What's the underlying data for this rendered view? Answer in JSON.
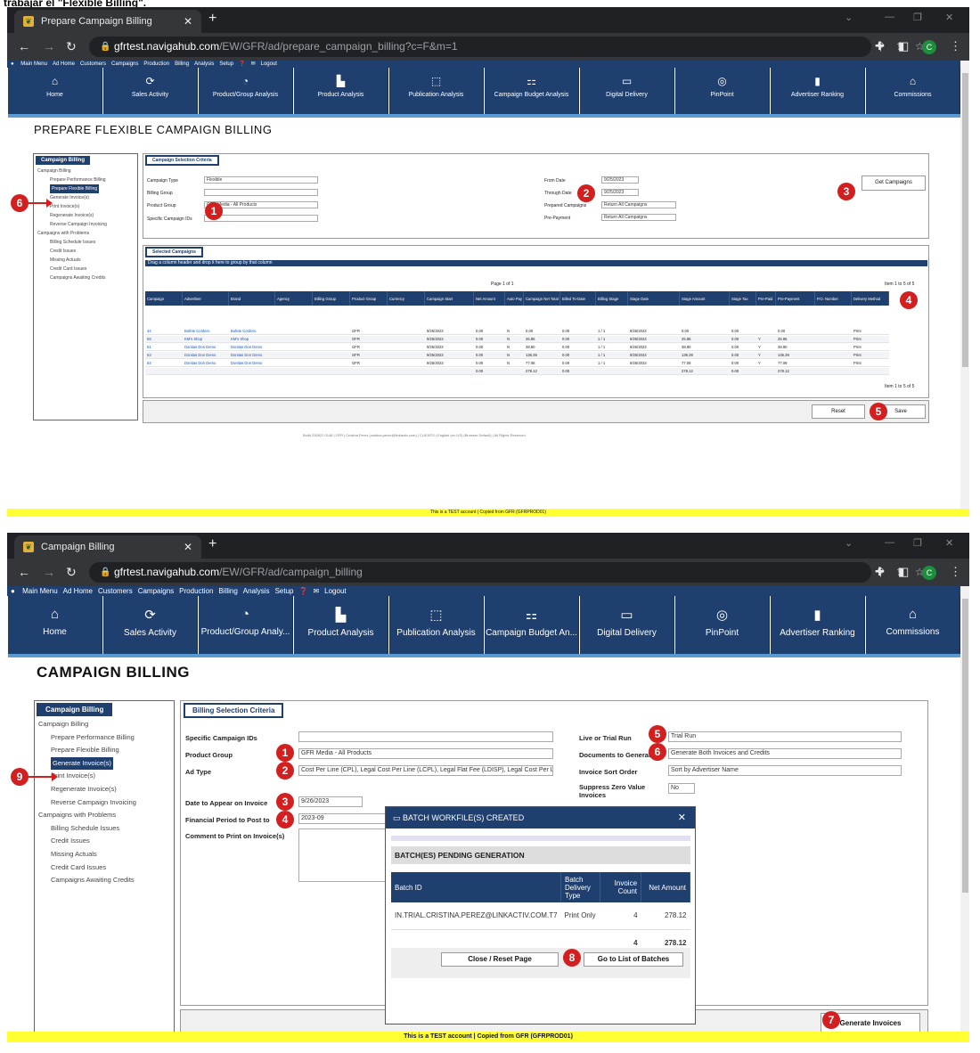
{
  "caption_top": "trabajar el \"Flexible Billing\".",
  "screen1": {
    "tab_title": "Prepare Campaign Billing",
    "url_domain": "gfrtest.navigahub.com",
    "url_path": "/EW/GFR/ad/prepare_campaign_billing?c=F&m=1",
    "menu": [
      "Main Menu",
      "Ad Home",
      "Customers",
      "Campaigns",
      "Production",
      "Billing",
      "Analysis",
      "Setup",
      "Logout"
    ],
    "tiles": [
      "Home",
      "Sales Activity",
      "Product/Group Analysis",
      "Product Analysis",
      "Publication Analysis",
      "Campaign Budget Analysis",
      "Digital Delivery",
      "PinPoint",
      "Advertiser Ranking",
      "Commissions"
    ],
    "page_title": "PREPARE FLEXIBLE CAMPAIGN BILLING",
    "sidebar_title": "Campaign Billing",
    "sidebar_items": [
      "Campaign Billing",
      "Prepare Performance Billing",
      "Prepare Flexible Billing",
      "Generate Invoice(s)",
      "Print Invoice(s)",
      "Regenerate Invoice(s)",
      "Reverse Campaign Invoicing",
      "Campaigns with Problems",
      "Billing Schedule Issues",
      "Credit Issues",
      "Missing Actuals",
      "Credit Card Issues",
      "Campaigns Awaiting Credits"
    ],
    "criteria_tab": "Campaign Selection Criteria",
    "labels": {
      "campaign_type": "Campaign Type",
      "billing_group": "Billing Group",
      "product_group": "Product Group",
      "specific_ids": "Specific Campaign IDs",
      "from_date": "From Date",
      "through_date": "Through Date",
      "prepared": "Prepared Campaigns",
      "prepayment": "Pre-Payment"
    },
    "values": {
      "campaign_type": "Flexible",
      "product_group": "GFR Media - All Products",
      "from_date": "9/25/2023",
      "through_date": "9/25/2023",
      "prepared": "Return All Campaigns",
      "prepayment": "Return All Campaigns"
    },
    "get_campaigns": "Get Campaigns",
    "selected_tab": "Selected Campaigns",
    "group_hint": "Drag a column header and drop it here to group by that column",
    "pager_top": "Page 1 of 1",
    "pager_count": "Item 1 to 5 of 5",
    "columns": [
      "Campaign",
      "Advertiser",
      "Brand",
      "Agency",
      "Billing Group",
      "Product Group",
      "Currency",
      "Campaign Start",
      "Net Amount",
      "Auto Pay",
      "Campaign Net Total",
      "Billed To-Date",
      "Billing Stage",
      "Stage Date",
      "Stage Amount",
      "Stage Tax",
      "Pre-Paid",
      "Pre-Payment",
      "P.O. Number",
      "Delivery Method"
    ],
    "rows": [
      [
        "44",
        "Bufete Cordero",
        "Bufete Cordero",
        "",
        "",
        "GFR",
        "",
        "9/25/2023",
        "0.00",
        "N",
        "0.00",
        "0.00",
        "1 / 1",
        "9/25/2023",
        "0.00",
        "0.00",
        "",
        "0.00",
        "",
        "Print"
      ],
      [
        "59",
        "KM's Shop",
        "KM's Shop",
        "",
        "",
        "GFR",
        "",
        "9/25/2023",
        "0.00",
        "N",
        "25.85",
        "0.00",
        "1 / 1",
        "9/25/2023",
        "25.85",
        "0.00",
        "Y",
        "25.85",
        "",
        "Print"
      ],
      [
        "61",
        "Donitas Don Demo",
        "Donitas Don Demo",
        "",
        "",
        "GFR",
        "",
        "9/25/2023",
        "0.00",
        "N",
        "38.80",
        "0.00",
        "1 / 1",
        "9/25/2023",
        "38.80",
        "0.00",
        "Y",
        "38.80",
        "",
        "Print"
      ],
      [
        "63",
        "Donitas Don Demo",
        "Donitas Don Demo",
        "",
        "",
        "GFR",
        "",
        "9/25/2023",
        "0.00",
        "N",
        "136.39",
        "0.00",
        "1 / 1",
        "9/25/2023",
        "136.39",
        "0.00",
        "Y",
        "136.39",
        "",
        "Print"
      ],
      [
        "64",
        "Donitas Don Demo",
        "Donitas Don Demo",
        "",
        "",
        "GFR",
        "",
        "9/25/2023",
        "0.00",
        "N",
        "77.08",
        "0.00",
        "1 / 1",
        "9/25/2023",
        "77.08",
        "0.00",
        "Y",
        "77.08",
        "",
        "Print"
      ]
    ],
    "totals": {
      "net": "0.00",
      "campaign": "278.12",
      "billed": "0.00",
      "stage": "278.12",
      "tax": "0.00",
      "prepay": "278.12"
    },
    "reset": "Reset",
    "save": "Save",
    "footer": "Build 230922.0146 | GFR | Cristina Perez (cristina.perez@linkactiv.com) | CLIENTS | English (en-US) (Browser Default) | All Rights Reserved",
    "testbar": "This is a TEST account  |  Copied from GFR (GFRPROD01)"
  },
  "screen2": {
    "tab_title": "Campaign Billing",
    "url_domain": "gfrtest.navigahub.com",
    "url_path": "/EW/GFR/ad/campaign_billing",
    "tiles": [
      "Home",
      "Sales Activity",
      "Product/Group Analy...",
      "Product Analysis",
      "Publication Analysis",
      "Campaign Budget An...",
      "Digital Delivery",
      "PinPoint",
      "Advertiser Ranking",
      "Commissions"
    ],
    "page_title": "CAMPAIGN BILLING",
    "sidebar_title": "Campaign Billing",
    "sidebar_items": [
      "Campaign Billing",
      "Prepare Performance Billing",
      "Prepare Flexible Billing",
      "Generate Invoice(s)",
      "Print Invoice(s)",
      "Regenerate Invoice(s)",
      "Reverse Campaign Invoicing",
      "Campaigns with Problems",
      "Billing Schedule Issues",
      "Credit Issues",
      "Missing Actuals",
      "Credit Card Issues",
      "Campaigns Awaiting Credits"
    ],
    "criteria_tab": "Billing Selection Criteria",
    "labels": {
      "specific_ids": "Specific Campaign IDs",
      "product_group": "Product Group",
      "ad_type": "Ad Type",
      "date_invoice": "Date to Appear on Invoice",
      "fin_period": "Financial Period to Post to",
      "comment": "Comment to Print on Invoice(s)",
      "live_trial": "Live or Trial Run",
      "documents": "Documents to Generate",
      "sort_order": "Invoice Sort Order",
      "suppress": "Suppress Zero Value Invoices"
    },
    "values": {
      "product_group": "GFR Media - All Products",
      "ad_type": "Cost Per Line (CPL), Legal Cost Per Line (LCPL), Legal Flat Fee (LDISP), Legal Cost Per L",
      "date_invoice": "9/26/2023",
      "fin_period": "2023-09",
      "live_trial": "Trial Run",
      "documents": "Generate Both Invoices and Credits",
      "sort_order": "Sort by Advertiser Name",
      "suppress": "No"
    },
    "modal": {
      "title": "BATCH WORKFILE(S) CREATED",
      "subtitle": "BATCH(ES) PENDING GENERATION",
      "headers": [
        "Batch ID",
        "Batch Delivery Type",
        "Invoice Count",
        "Net Amount"
      ],
      "row": [
        "IN.TRIAL.CRISTINA.PEREZ@LINKACTIV.COM.T7",
        "Print Only",
        "4",
        "278.12"
      ],
      "total_count": "4",
      "total_amount": "278.12",
      "close": "Close / Reset Page",
      "goto": "Go to List of Batches"
    },
    "generate": "Generate Invoices",
    "testbar": "This is a TEST account  |  Copied from GFR (GFRPROD01)"
  }
}
